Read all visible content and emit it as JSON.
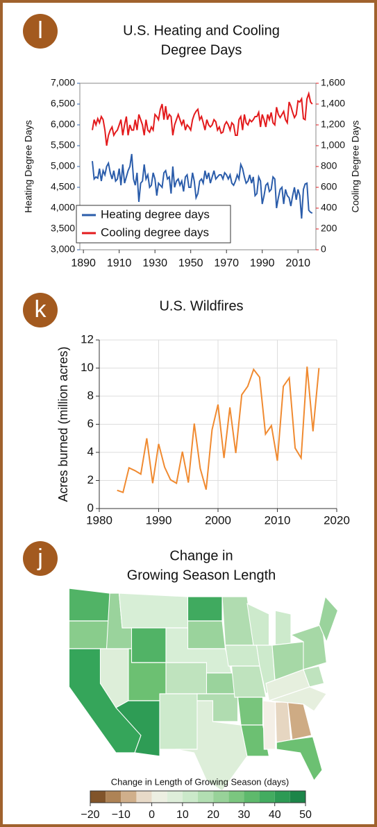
{
  "chart_data": [
    {
      "type": "dual_line",
      "badge": "l",
      "title": [
        "U.S. Heating and Cooling",
        "Degree Days"
      ],
      "ylabel": "Heating Degree Days",
      "y2label": "Cooling Degree Days",
      "legend": "lower left",
      "x": [
        1895,
        1896,
        1897,
        1898,
        1899,
        1900,
        1901,
        1902,
        1903,
        1904,
        1905,
        1906,
        1907,
        1908,
        1909,
        1910,
        1911,
        1912,
        1913,
        1914,
        1915,
        1916,
        1917,
        1918,
        1919,
        1920,
        1921,
        1922,
        1923,
        1924,
        1925,
        1926,
        1927,
        1928,
        1929,
        1930,
        1931,
        1932,
        1933,
        1934,
        1935,
        1936,
        1937,
        1938,
        1939,
        1940,
        1941,
        1942,
        1943,
        1944,
        1945,
        1946,
        1947,
        1948,
        1949,
        1950,
        1951,
        1952,
        1953,
        1954,
        1955,
        1956,
        1957,
        1958,
        1959,
        1960,
        1961,
        1962,
        1963,
        1964,
        1965,
        1966,
        1967,
        1968,
        1969,
        1970,
        1971,
        1972,
        1973,
        1974,
        1975,
        1976,
        1977,
        1978,
        1979,
        1980,
        1981,
        1982,
        1983,
        1984,
        1985,
        1986,
        1987,
        1988,
        1989,
        1990,
        1991,
        1992,
        1993,
        1994,
        1995,
        1996,
        1997,
        1998,
        1999,
        2000,
        2001,
        2002,
        2003,
        2004,
        2005,
        2006,
        2007,
        2008,
        2009,
        2010,
        2011,
        2012,
        2013,
        2014,
        2015,
        2016,
        2017,
        2018
      ],
      "series": [
        {
          "name": "Heating degree days",
          "color": "#2a5caa",
          "axis": "y",
          "values": [
            5130,
            4700,
            4750,
            4720,
            4950,
            4650,
            4900,
            4800,
            5000,
            5080,
            4850,
            4700,
            4900,
            4650,
            4700,
            4950,
            4550,
            5050,
            4600,
            4750,
            4900,
            5000,
            5300,
            4700,
            4550,
            4850,
            4150,
            4600,
            4650,
            5050,
            4700,
            4800,
            4500,
            4550,
            4850,
            4700,
            4300,
            4600,
            4550,
            4500,
            4850,
            4900,
            4700,
            4750,
            4350,
            5000,
            4500,
            4650,
            4700,
            4550,
            4650,
            4400,
            4750,
            4800,
            4500,
            4500,
            4850,
            4650,
            4250,
            4350,
            4650,
            4700,
            4600,
            4900,
            4700,
            4850,
            4600,
            4750,
            4900,
            4700,
            4750,
            4800,
            4800,
            4700,
            4850,
            4800,
            4700,
            4800,
            4600,
            4550,
            4650,
            4800,
            4700,
            5050,
            4950,
            4750,
            4600,
            4650,
            4800,
            4600,
            4750,
            4300,
            4350,
            4750,
            4650,
            4100,
            4300,
            4550,
            4600,
            4400,
            4450,
            4750,
            4700,
            4000,
            4250,
            4450,
            4500,
            4100,
            4450,
            4300,
            4250,
            4050,
            4300,
            4500,
            4200,
            4450,
            4300,
            3750,
            4450,
            4580,
            4600,
            3950,
            3900,
            3880
          ]
        },
        {
          "name": "Cooling degree days",
          "color": "#e31a1c",
          "axis": "y2",
          "values": [
            1150,
            1250,
            1200,
            1260,
            1220,
            1280,
            1250,
            1150,
            1000,
            1100,
            1150,
            1180,
            1100,
            1130,
            1150,
            1200,
            1250,
            1100,
            1200,
            1280,
            1100,
            1200,
            1150,
            1150,
            1250,
            1150,
            1300,
            1250,
            1200,
            1100,
            1250,
            1150,
            1130,
            1180,
            1150,
            1300,
            1280,
            1250,
            1350,
            1400,
            1250,
            1380,
            1250,
            1300,
            1280,
            1100,
            1200,
            1250,
            1300,
            1250,
            1200,
            1250,
            1150,
            1200,
            1180,
            1150,
            1250,
            1300,
            1330,
            1350,
            1250,
            1280,
            1220,
            1150,
            1250,
            1200,
            1180,
            1200,
            1250,
            1230,
            1150,
            1180,
            1120,
            1130,
            1200,
            1230,
            1200,
            1150,
            1220,
            1200,
            1100,
            1100,
            1250,
            1280,
            1150,
            1300,
            1220,
            1200,
            1250,
            1230,
            1250,
            1280,
            1280,
            1320,
            1180,
            1300,
            1250,
            1180,
            1300,
            1250,
            1320,
            1220,
            1200,
            1370,
            1300,
            1270,
            1300,
            1330,
            1250,
            1220,
            1420,
            1380,
            1320,
            1270,
            1300,
            1430,
            1420,
            1450,
            1260,
            1250,
            1450,
            1500,
            1420,
            1400
          ]
        }
      ],
      "xlim": [
        1888,
        2020
      ],
      "xticks": [
        1890,
        1910,
        1930,
        1950,
        1970,
        1990,
        2010
      ],
      "ylim": [
        3000,
        7000
      ],
      "yticks": [
        {
          "value": 3000,
          "label": "3,000"
        },
        {
          "value": 3500,
          "label": "3,500"
        },
        {
          "value": 4000,
          "label": "4,000"
        },
        {
          "value": 4500,
          "label": "4,500"
        },
        {
          "value": 5000,
          "label": "5,000"
        },
        {
          "value": 5500,
          "label": "5,500"
        },
        {
          "value": 6000,
          "label": "6,000"
        },
        {
          "value": 6500,
          "label": "6,500"
        },
        {
          "value": 7000,
          "label": "7,000"
        }
      ],
      "y2lim": [
        0,
        1600
      ],
      "y2ticks": [
        0,
        200,
        400,
        600,
        800,
        {
          "value": 1000,
          "label": "1,000"
        },
        {
          "value": 1200,
          "label": "1,200"
        },
        {
          "value": 1400,
          "label": "1,400"
        },
        {
          "value": 1600,
          "label": "1,600"
        }
      ]
    },
    {
      "type": "line",
      "badge": "k",
      "title": [
        "U.S. Wildfires"
      ],
      "ylabel": "Acres burned (million acres)",
      "color": "#f08a30",
      "grid": true,
      "x": [
        1983,
        1984,
        1985,
        1986,
        1987,
        1988,
        1989,
        1990,
        1991,
        1992,
        1993,
        1994,
        1995,
        1996,
        1997,
        1998,
        1999,
        2000,
        2001,
        2002,
        2003,
        2004,
        2005,
        2006,
        2007,
        2008,
        2009,
        2010,
        2011,
        2012,
        2013,
        2014,
        2015,
        2016,
        2017
      ],
      "values": [
        1.3,
        1.15,
        2.9,
        2.7,
        2.45,
        5.0,
        1.8,
        4.6,
        2.95,
        2.05,
        1.8,
        4.05,
        1.85,
        6.05,
        2.85,
        1.35,
        5.6,
        7.4,
        3.6,
        7.2,
        3.95,
        8.1,
        8.7,
        9.9,
        9.35,
        5.3,
        5.9,
        3.4,
        8.7,
        9.3,
        4.3,
        3.6,
        10.1,
        5.5,
        10.0
      ],
      "xlim": [
        1980,
        2020
      ],
      "xticks": [
        1980,
        1990,
        2000,
        2010,
        2020
      ],
      "ylim": [
        0,
        12
      ],
      "yticks": [
        0,
        2,
        4,
        6,
        8,
        10,
        12
      ]
    },
    {
      "type": "map",
      "badge": "j",
      "title": [
        "Change in",
        "Growing Season Length"
      ],
      "colorbar_label": "Change in Length of Growing Season (days)",
      "values": [
        35,
        25,
        40,
        8,
        22,
        10,
        35,
        30,
        42,
        15,
        12,
        38,
        22,
        10,
        22,
        18,
        8,
        18,
        12,
        15,
        28,
        30,
        12,
        12,
        12,
        20,
        5,
        0,
        -3,
        -8,
        30,
        5,
        15,
        20,
        22
      ],
      "clim": [
        -20,
        50
      ],
      "colorscale": [
        "#6b3d14",
        "#c49a6c",
        "#f4efe6",
        "#d7eed6",
        "#a6d8a6",
        "#6cc072",
        "#35a55a",
        "#137a43"
      ],
      "cticks": [
        {
          "value": -20,
          "label": "−20"
        },
        {
          "value": -10,
          "label": "−10"
        },
        0,
        10,
        20,
        30,
        40,
        50
      ]
    }
  ]
}
